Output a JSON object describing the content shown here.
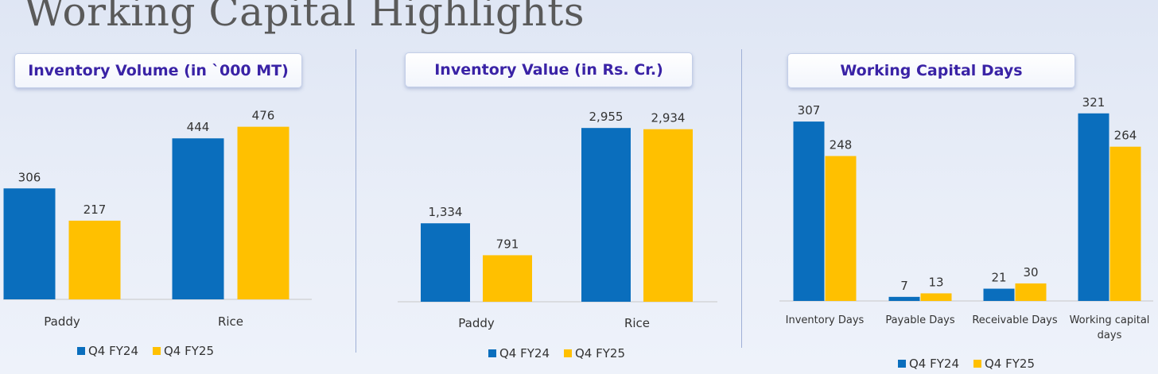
{
  "page_title": "Working Capital Highlights",
  "colors": {
    "series1": "#0a6ebd",
    "series2": "#ffc000"
  },
  "legend": {
    "series1": "Q4 FY24",
    "series2": "Q4 FY25"
  },
  "chart_data": [
    {
      "type": "bar",
      "title": "Inventory Volume (in `000 MT)",
      "categories": [
        "Paddy",
        "Rice"
      ],
      "series": [
        {
          "name": "Q4 FY24",
          "values": [
            306,
            444
          ],
          "labels": [
            "306",
            "444"
          ]
        },
        {
          "name": "Q4 FY25",
          "values": [
            217,
            476
          ],
          "labels": [
            "217",
            "476"
          ]
        }
      ],
      "ylim": [
        0,
        600
      ]
    },
    {
      "type": "bar",
      "title": "Inventory Value (in Rs. Cr.)",
      "categories": [
        "Paddy",
        "Rice"
      ],
      "series": [
        {
          "name": "Q4 FY24",
          "values": [
            1334,
            2955
          ],
          "labels": [
            "1,334",
            "2,955"
          ]
        },
        {
          "name": "Q4 FY25",
          "values": [
            791,
            2934
          ],
          "labels": [
            "791",
            "2,934"
          ]
        }
      ],
      "ylim": [
        0,
        3700
      ]
    },
    {
      "type": "bar",
      "title": "Working Capital Days",
      "categories": [
        "Inventory Days",
        "Payable Days",
        "Receivable Days",
        "Working capital days"
      ],
      "series": [
        {
          "name": "Q4 FY24",
          "values": [
            307,
            7,
            21,
            321
          ],
          "labels": [
            "307",
            "7",
            "21",
            "321"
          ]
        },
        {
          "name": "Q4 FY25",
          "values": [
            248,
            13,
            30,
            264
          ],
          "labels": [
            "248",
            "13",
            "30",
            "264"
          ]
        }
      ],
      "ylim": [
        0,
        390
      ]
    }
  ]
}
